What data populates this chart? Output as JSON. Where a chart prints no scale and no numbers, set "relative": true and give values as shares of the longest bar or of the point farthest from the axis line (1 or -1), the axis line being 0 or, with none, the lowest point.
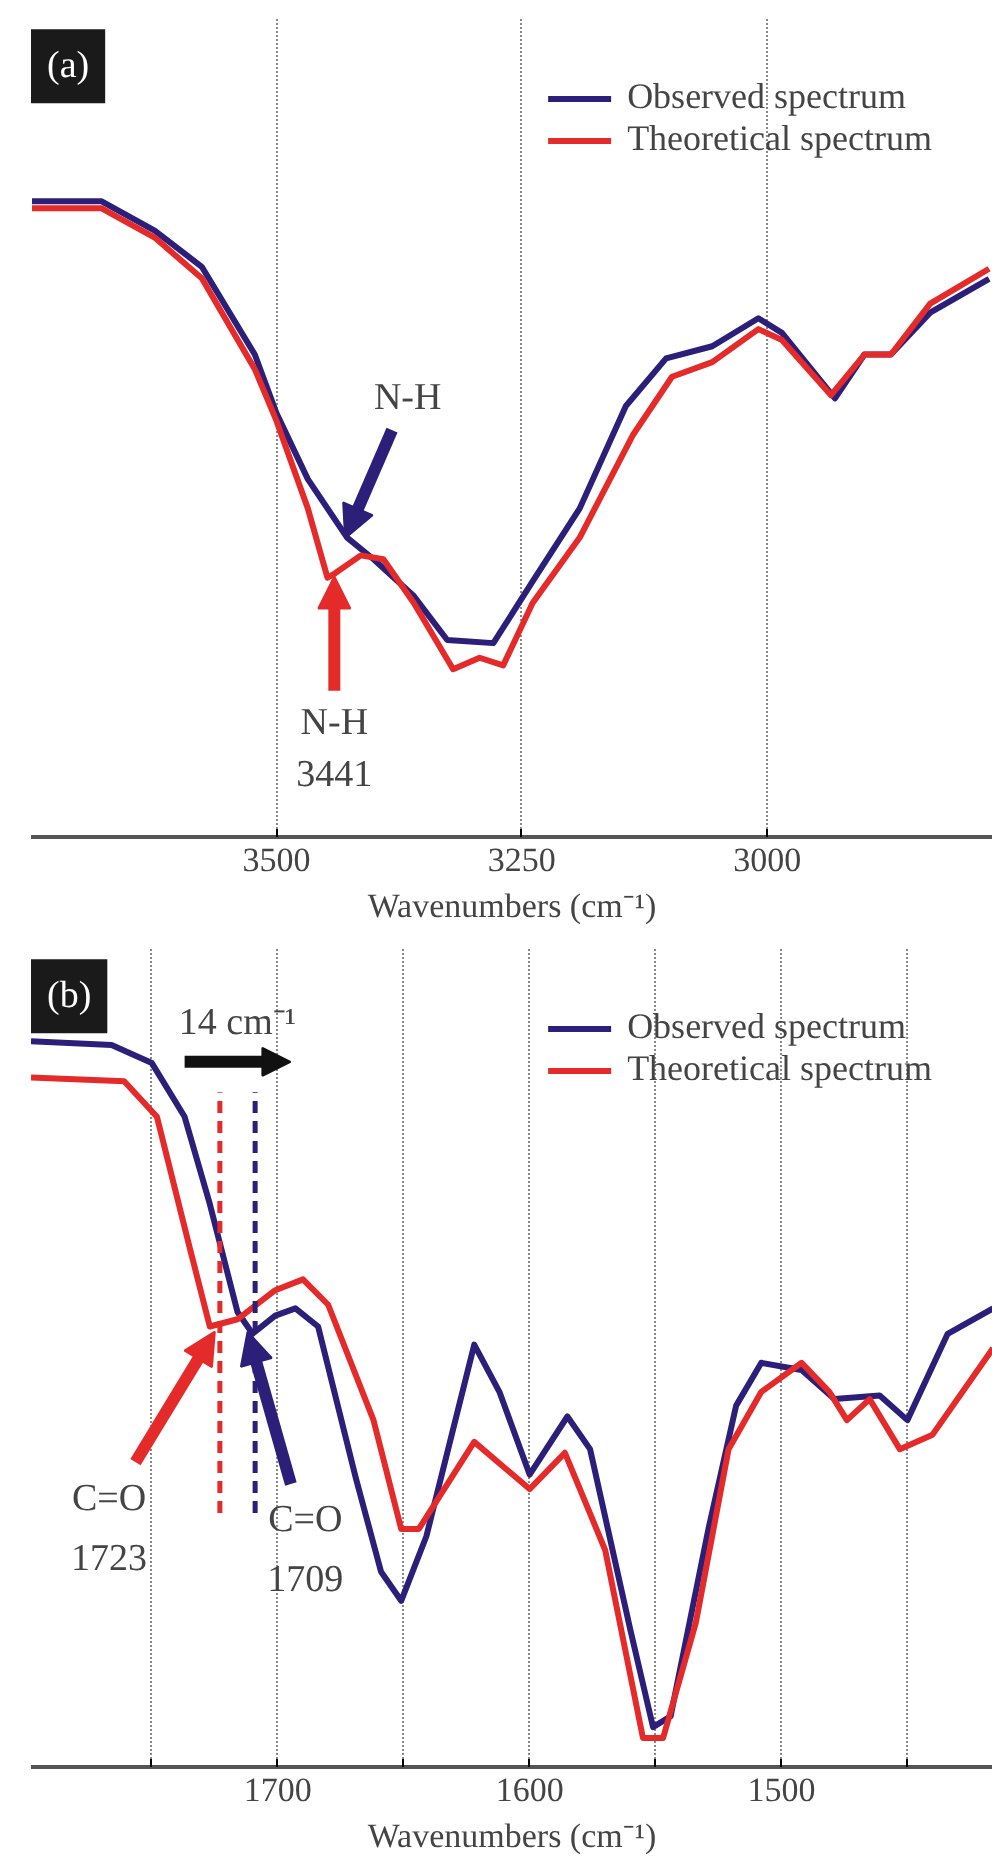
{
  "chart_data": [
    {
      "type": "line",
      "title": "(a)",
      "xlabel": "Wavenumbers (cm⁻¹)",
      "relative": true,
      "xlim": [
        3750,
        2770
      ],
      "xticks": [
        3500,
        3250,
        3000
      ],
      "grid": "x",
      "legend": "top right",
      "series": [
        {
          "name": "Observed spectrum",
          "color": "#2b1f7a",
          "x": [
            3749,
            3678,
            3624,
            3576,
            3522,
            3500,
            3468,
            3428,
            3401,
            3360,
            3326,
            3279,
            3239,
            3191,
            3144,
            3103,
            3056,
            3009,
            2985,
            2931,
            2901,
            2874,
            2834,
            2774
          ],
          "values": [
            1.0,
            1.0,
            0.954,
            0.897,
            0.759,
            0.667,
            0.563,
            0.471,
            0.437,
            0.379,
            0.31,
            0.305,
            0.402,
            0.517,
            0.678,
            0.753,
            0.772,
            0.816,
            0.793,
            0.69,
            0.759,
            0.759,
            0.825,
            0.878
          ]
        },
        {
          "name": "Theoretical spectrum",
          "color": "#e52a2a",
          "x": [
            3749,
            3678,
            3624,
            3576,
            3522,
            3500,
            3468,
            3448,
            3441,
            3414,
            3391,
            3360,
            3320,
            3293,
            3269,
            3239,
            3191,
            3137,
            3097,
            3056,
            3009,
            2985,
            2935,
            2901,
            2874,
            2834,
            2774
          ],
          "values": [
            0.989,
            0.989,
            0.943,
            0.879,
            0.736,
            0.655,
            0.517,
            0.408,
            0.414,
            0.443,
            0.437,
            0.368,
            0.264,
            0.282,
            0.27,
            0.368,
            0.471,
            0.632,
            0.724,
            0.747,
            0.799,
            0.782,
            0.695,
            0.759,
            0.759,
            0.839,
            0.894
          ]
        }
      ],
      "annotations": [
        {
          "text": "N-H",
          "x": 3430,
          "y": 0.47
        },
        {
          "text": "N-H\n3441",
          "x": 3441,
          "y": 0.41
        }
      ]
    },
    {
      "type": "line",
      "title": "(b)",
      "xlabel": "Wavenumbers (cm⁻¹)",
      "relative": true,
      "xlim": [
        1798,
        1416
      ],
      "xticks": [
        {
          "value": 1750,
          "label": null
        },
        1700,
        {
          "value": 1650,
          "label": null
        },
        1600,
        {
          "value": 1550,
          "label": null
        },
        1500,
        {
          "value": 1450,
          "label": null
        }
      ],
      "grid": "x",
      "legend": "top right",
      "series": [
        {
          "name": "Observed spectrum",
          "color": "#2b1f7a",
          "x": [
            1798,
            1766,
            1750,
            1737,
            1727,
            1716,
            1710,
            1701,
            1693,
            1684,
            1669,
            1659,
            1651,
            1641,
            1622,
            1612,
            1600,
            1585,
            1576,
            1560,
            1551,
            1544,
            1529,
            1518,
            1508,
            1492,
            1479,
            1461,
            1450,
            1434,
            1416
          ],
          "values": [
            1.0,
            0.995,
            0.97,
            0.896,
            0.776,
            0.627,
            0.597,
            0.622,
            0.632,
            0.607,
            0.398,
            0.269,
            0.229,
            0.318,
            0.582,
            0.517,
            0.403,
            0.483,
            0.438,
            0.189,
            0.055,
            0.07,
            0.328,
            0.498,
            0.557,
            0.547,
            0.507,
            0.512,
            0.478,
            0.597,
            0.632
          ]
        },
        {
          "name": "Theoretical spectrum",
          "color": "#e52a2a",
          "x": [
            1798,
            1761,
            1748,
            1735,
            1727,
            1716,
            1701,
            1690,
            1680,
            1662,
            1651,
            1644,
            1622,
            1600,
            1586,
            1570,
            1555,
            1547,
            1534,
            1521,
            1508,
            1492,
            1481,
            1474,
            1465,
            1453,
            1440,
            1416
          ],
          "values": [
            0.95,
            0.945,
            0.896,
            0.716,
            0.607,
            0.617,
            0.657,
            0.672,
            0.637,
            0.478,
            0.328,
            0.328,
            0.448,
            0.383,
            0.433,
            0.299,
            0.04,
            0.04,
            0.199,
            0.438,
            0.517,
            0.557,
            0.517,
            0.478,
            0.507,
            0.438,
            0.458,
            0.577
          ]
        }
      ],
      "ref_lines": [
        {
          "axis": "x",
          "value": 1723,
          "color": "#e52a2a",
          "line_style": "dashed"
        },
        {
          "axis": "x",
          "value": 1709,
          "color": "#2b1f7a",
          "line_style": "dashed"
        }
      ],
      "annotations": [
        {
          "text": "C=O\n1709",
          "x": 1712,
          "y": 0.6
        },
        {
          "text": "C=O\n1723",
          "x": 1725,
          "y": 0.6
        },
        "14 cm⁻¹"
      ]
    }
  ]
}
